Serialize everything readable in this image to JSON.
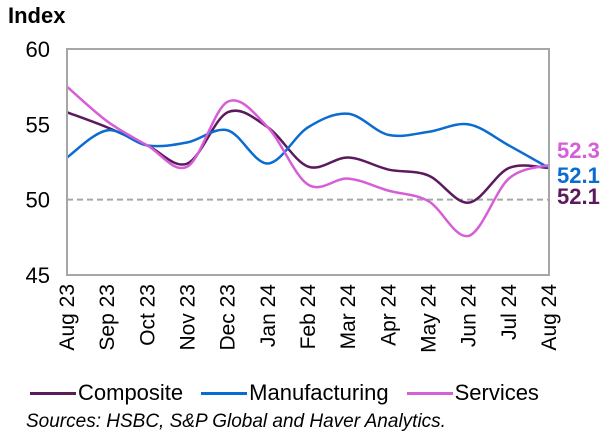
{
  "chart_data": {
    "type": "line",
    "title": "",
    "ylabel": "Index",
    "xlabel": "",
    "ylim": [
      45,
      60
    ],
    "yticks": [
      45,
      50,
      55,
      60
    ],
    "reference_line": {
      "value": 50,
      "style": "dashed",
      "color": "#a6a6a6"
    },
    "grid": false,
    "categories": [
      "Aug 23",
      "Sep 23",
      "Oct 23",
      "Nov 23",
      "Dec 23",
      "Jan 24",
      "Feb 24",
      "Mar 24",
      "Apr 24",
      "May 24",
      "Jun 24",
      "Jul 24",
      "Aug 24"
    ],
    "series": [
      {
        "name": "Composite",
        "color": "#5c1a5e",
        "values": [
          55.8,
          54.8,
          53.6,
          52.4,
          55.8,
          54.8,
          52.2,
          52.8,
          52.0,
          51.6,
          49.8,
          52.1,
          52.1
        ],
        "end_label": "52.1"
      },
      {
        "name": "Manufacturing",
        "color": "#0a6cd1",
        "values": [
          52.8,
          54.6,
          53.6,
          53.8,
          54.6,
          52.4,
          54.8,
          55.7,
          54.3,
          54.5,
          55.0,
          53.6,
          52.1
        ],
        "end_label": "52.1"
      },
      {
        "name": "Services",
        "color": "#d65ed6",
        "values": [
          57.5,
          55.2,
          53.6,
          52.2,
          56.5,
          54.8,
          51.0,
          51.4,
          50.6,
          49.9,
          47.6,
          51.4,
          52.3
        ],
        "end_label": "52.3"
      }
    ],
    "legend_position": "bottom",
    "source": "Sources: HSBC, S&P Global and Haver Analytics."
  }
}
